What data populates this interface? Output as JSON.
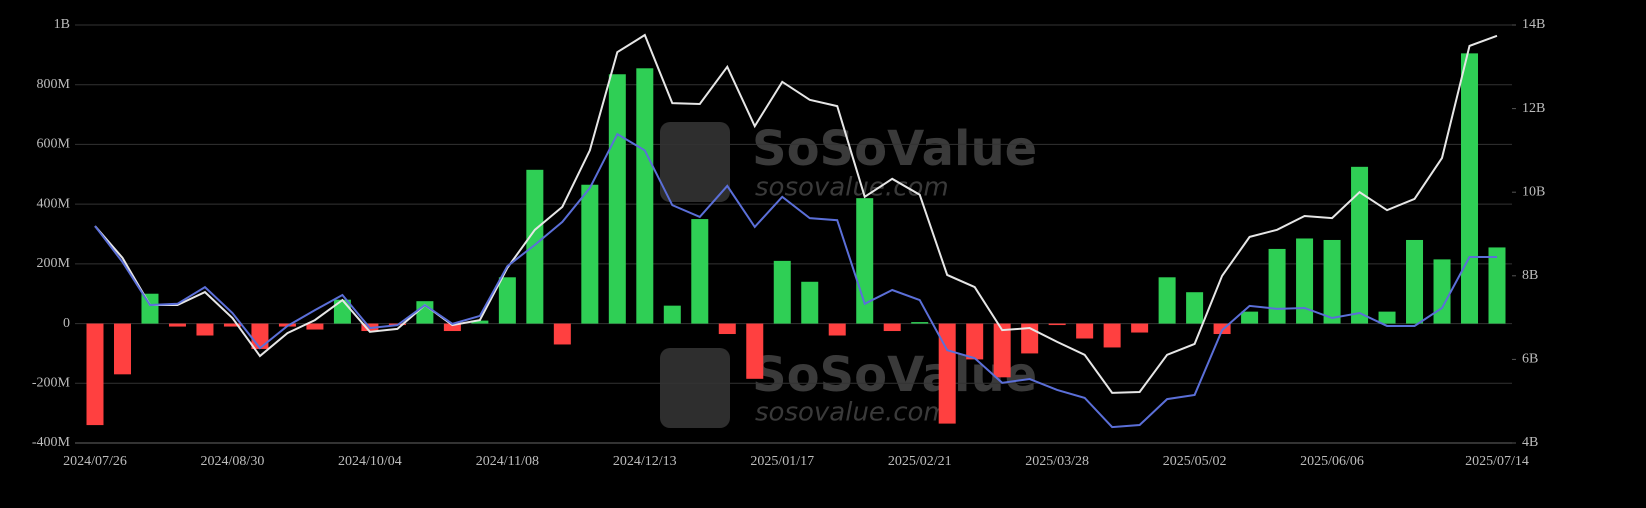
{
  "chart_data": {
    "type": "bar_line",
    "watermark": {
      "brand": "SoSoValue",
      "url": "sosovalue.com"
    },
    "categories": [
      "2024/07/26",
      null,
      null,
      null,
      null,
      "2024/08/30",
      null,
      null,
      null,
      null,
      "2024/10/04",
      null,
      null,
      null,
      null,
      "2024/11/08",
      null,
      null,
      null,
      null,
      "2024/12/13",
      null,
      null,
      null,
      null,
      "2025/01/17",
      null,
      null,
      null,
      null,
      "2025/02/21",
      null,
      null,
      null,
      null,
      "2025/03/28",
      null,
      null,
      null,
      null,
      "2025/05/02",
      null,
      null,
      null,
      null,
      "2025/06/06",
      null,
      null,
      null,
      null,
      null,
      "2025/07/14"
    ],
    "values": [
      -340000000,
      -170000000,
      100000000,
      -10000000,
      -40000000,
      -10000000,
      -85000000,
      -10000000,
      -20000000,
      80000000,
      -25000000,
      -5000000,
      75000000,
      -25000000,
      10000000,
      155000000,
      515000000,
      -70000000,
      465000000,
      835000000,
      855000000,
      60000000,
      350000000,
      -35000000,
      -185000000,
      210000000,
      140000000,
      -40000000,
      420000000,
      -25000000,
      5000000,
      -335000000,
      -120000000,
      -180000000,
      -100000000,
      -5000000,
      -50000000,
      -80000000,
      -30000000,
      155000000,
      105000000,
      -35000000,
      40000000,
      250000000,
      285000000,
      280000000,
      525000000,
      40000000,
      280000000,
      215000000,
      905000000,
      255000000
    ],
    "positive_color": "#2fcf55",
    "negative_color": "#ff4040",
    "series": [
      {
        "color": "#e6e6e6",
        "axis": "y2",
        "values": [
          9190000000,
          8430000000,
          7300000000,
          7300000000,
          7610000000,
          6990000000,
          6080000000,
          6630000000,
          6940000000,
          7420000000,
          6660000000,
          6730000000,
          7300000000,
          6820000000,
          6940000000,
          8190000000,
          9100000000,
          9650000000,
          11000000000,
          13350000000,
          13760000000,
          12130000000,
          12110000000,
          13000000000,
          11580000000,
          12640000000,
          12210000000,
          12060000000,
          9890000000,
          10320000000,
          9940000000,
          8020000000,
          7730000000,
          6700000000,
          6750000000,
          6420000000,
          6110000000,
          5200000000,
          5220000000,
          6110000000,
          6370000000,
          8000000000,
          8930000000,
          9100000000,
          9430000000,
          9380000000,
          10000000000,
          9570000000,
          9840000000,
          10820000000,
          13500000000,
          13740000000
        ]
      },
      {
        "color": "#5b6fd8",
        "axis": "y2",
        "values": [
          9190000000,
          8330000000,
          7300000000,
          7330000000,
          7730000000,
          7110000000,
          6270000000,
          6800000000,
          7180000000,
          7540000000,
          6750000000,
          6820000000,
          7300000000,
          6850000000,
          7040000000,
          8230000000,
          8740000000,
          9290000000,
          10100000000,
          11390000000,
          11000000000,
          9690000000,
          9410000000,
          10150000000,
          9170000000,
          9890000000,
          9380000000,
          9330000000,
          7330000000,
          7660000000,
          7420000000,
          6220000000,
          6030000000,
          5440000000,
          5530000000,
          5270000000,
          5080000000,
          4380000000,
          4430000000,
          5050000000,
          5150000000,
          6700000000,
          7280000000,
          7210000000,
          7230000000,
          6990000000,
          7110000000,
          6800000000,
          6800000000,
          7230000000,
          8450000000,
          8450000000
        ]
      }
    ],
    "ylim": [
      -400000000,
      1000000000
    ],
    "yticks": [
      {
        "value": -400000000,
        "label": "-400M"
      },
      {
        "value": -200000000,
        "label": "-200M"
      },
      0,
      {
        "value": 200000000,
        "label": "200M"
      },
      {
        "value": 400000000,
        "label": "400M"
      },
      {
        "value": 600000000,
        "label": "600M"
      },
      {
        "value": 800000000,
        "label": "800M"
      },
      {
        "value": 1000000000,
        "label": "1B"
      }
    ],
    "y2lim": [
      4000000000,
      14000000000
    ],
    "y2ticks": [
      {
        "value": 4000000000,
        "label": "4B"
      },
      {
        "value": 6000000000,
        "label": "6B"
      },
      {
        "value": 8000000000,
        "label": "8B"
      },
      {
        "value": 10000000000,
        "label": "10B"
      },
      {
        "value": 12000000000,
        "label": "12B"
      },
      {
        "value": 14000000000,
        "label": "14B"
      }
    ],
    "grid": true
  }
}
